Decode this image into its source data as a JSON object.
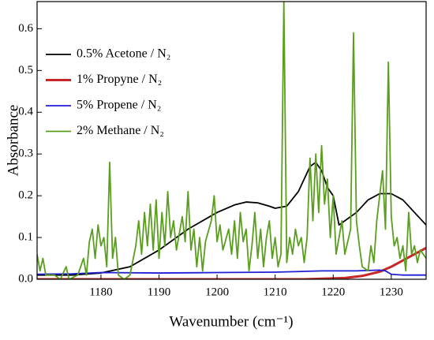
{
  "chart_data": {
    "type": "line",
    "xlabel": "Wavenumber (cm⁻¹)",
    "ylabel": "Absorbance",
    "xlim": [
      1169,
      1236
    ],
    "ylim": [
      0,
      0.665
    ],
    "xticks": [
      1180,
      1190,
      1200,
      1210,
      1220,
      1230
    ],
    "yticks": [
      {
        "value": 0,
        "label": "0.0"
      },
      0.1,
      0.2,
      0.3,
      0.4,
      0.5,
      0.6
    ],
    "legend": "upper left",
    "series": [
      {
        "name": "0.5% Acetone / N₂",
        "color": "#000000",
        "x": [
          1169,
          1175,
          1180,
          1185,
          1190,
          1195,
          1200,
          1203,
          1205,
          1207,
          1209,
          1210,
          1212,
          1214,
          1216,
          1217,
          1218,
          1219,
          1220,
          1221,
          1222,
          1224,
          1226,
          1228,
          1230,
          1232,
          1234,
          1236
        ],
        "values": [
          0.01,
          0.01,
          0.015,
          0.03,
          0.07,
          0.12,
          0.16,
          0.178,
          0.185,
          0.183,
          0.175,
          0.17,
          0.175,
          0.21,
          0.27,
          0.28,
          0.26,
          0.22,
          0.2,
          0.13,
          0.14,
          0.16,
          0.19,
          0.205,
          0.205,
          0.19,
          0.16,
          0.13
        ]
      },
      {
        "name": "1% Propyne / N₂",
        "color": "#c62828",
        "x": [
          1169,
          1180,
          1200,
          1215,
          1222,
          1225,
          1228,
          1230,
          1232,
          1234,
          1236
        ],
        "values": [
          0.0,
          0.0,
          0.0,
          0.0,
          0.003,
          0.008,
          0.018,
          0.03,
          0.045,
          0.06,
          0.075
        ]
      },
      {
        "name": "5% Propene / N₂",
        "color": "#1f1fd6",
        "x": [
          1169,
          1175,
          1180,
          1190,
          1200,
          1210,
          1218,
          1224,
          1228,
          1229,
          1230,
          1232,
          1236
        ],
        "values": [
          0.012,
          0.013,
          0.016,
          0.015,
          0.016,
          0.017,
          0.02,
          0.02,
          0.022,
          0.02,
          0.012,
          0.01,
          0.01
        ]
      },
      {
        "name": "2% Methane / N₂",
        "color": "#5a9e1e",
        "x": [
          1169,
          1169.5,
          1170,
          1170.5,
          1172,
          1173,
          1174,
          1174.5,
          1176,
          1177,
          1177.5,
          1178,
          1178.5,
          1179,
          1179.5,
          1180,
          1180.5,
          1181,
          1181.5,
          1182,
          1182.5,
          1183,
          1184,
          1185,
          1186,
          1186.5,
          1187,
          1187.5,
          1188,
          1188.5,
          1189,
          1189.5,
          1190,
          1190.5,
          1191,
          1191.5,
          1192,
          1192.5,
          1193,
          1194,
          1194.5,
          1195,
          1195.5,
          1196,
          1196.5,
          1197,
          1197.5,
          1198,
          1199,
          1199.5,
          1200,
          1200.5,
          1201,
          1202,
          1202.5,
          1203,
          1203.5,
          1204,
          1204.5,
          1205,
          1205.5,
          1206,
          1206.5,
          1207,
          1207.5,
          1208,
          1208.5,
          1209,
          1209.5,
          1210,
          1210.5,
          1211,
          1211.5,
          1212,
          1212.5,
          1213,
          1213.5,
          1214,
          1214.5,
          1215,
          1215.5,
          1216,
          1216.5,
          1217,
          1217.5,
          1218,
          1218.5,
          1219,
          1219.5,
          1220,
          1220.5,
          1221,
          1221.5,
          1222,
          1222.5,
          1223,
          1223.5,
          1224,
          1224.5,
          1225,
          1226,
          1226.5,
          1227,
          1227.5,
          1228,
          1228.5,
          1229,
          1229.5,
          1230,
          1230.5,
          1231,
          1231.5,
          1232,
          1232.5,
          1233,
          1233.5,
          1234,
          1234.5,
          1235,
          1236
        ],
        "values": [
          0.06,
          0.02,
          0.05,
          0.01,
          0.01,
          0.0,
          0.03,
          0.0,
          0.01,
          0.05,
          0.01,
          0.09,
          0.12,
          0.05,
          0.13,
          0.08,
          0.1,
          0.03,
          0.28,
          0.05,
          0.1,
          0.01,
          0.0,
          0.01,
          0.08,
          0.14,
          0.06,
          0.16,
          0.08,
          0.18,
          0.07,
          0.19,
          0.05,
          0.16,
          0.08,
          0.21,
          0.1,
          0.14,
          0.07,
          0.15,
          0.09,
          0.21,
          0.07,
          0.12,
          0.03,
          0.1,
          0.02,
          0.09,
          0.14,
          0.2,
          0.09,
          0.13,
          0.07,
          0.12,
          0.06,
          0.14,
          0.05,
          0.16,
          0.09,
          0.12,
          0.02,
          0.08,
          0.16,
          0.05,
          0.12,
          0.03,
          0.1,
          0.14,
          0.05,
          0.1,
          0.03,
          0.06,
          0.665,
          0.04,
          0.1,
          0.06,
          0.12,
          0.08,
          0.1,
          0.04,
          0.1,
          0.29,
          0.14,
          0.3,
          0.16,
          0.32,
          0.18,
          0.24,
          0.1,
          0.2,
          0.06,
          0.1,
          0.14,
          0.06,
          0.09,
          0.12,
          0.59,
          0.14,
          0.08,
          0.03,
          0.02,
          0.08,
          0.04,
          0.14,
          0.2,
          0.26,
          0.12,
          0.52,
          0.15,
          0.08,
          0.1,
          0.05,
          0.08,
          0.02,
          0.16,
          0.06,
          0.08,
          0.04,
          0.07,
          0.05
        ]
      }
    ]
  }
}
